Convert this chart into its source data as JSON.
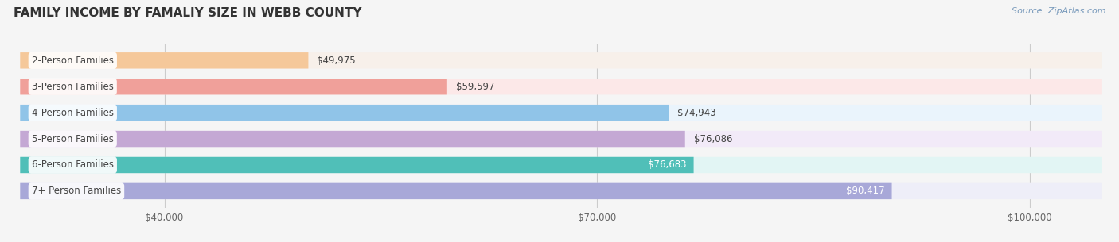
{
  "title": "FAMILY INCOME BY FAMALIY SIZE IN WEBB COUNTY",
  "source": "Source: ZipAtlas.com",
  "categories": [
    "2-Person Families",
    "3-Person Families",
    "4-Person Families",
    "5-Person Families",
    "6-Person Families",
    "7+ Person Families"
  ],
  "values": [
    49975,
    59597,
    74943,
    76086,
    76683,
    90417
  ],
  "bar_colors": [
    "#f5c89a",
    "#f0a09a",
    "#90c4e8",
    "#c4a8d4",
    "#50bfb8",
    "#a8a8d8"
  ],
  "bar_bg_colors": [
    "#f7f0ea",
    "#fce8e8",
    "#eaf4fc",
    "#f2eaf8",
    "#e2f5f4",
    "#eeeef8"
  ],
  "value_labels": [
    "$49,975",
    "$59,597",
    "$74,943",
    "$76,086",
    "$76,683",
    "$90,417"
  ],
  "value_label_colors": [
    "#444444",
    "#444444",
    "#444444",
    "#444444",
    "#ffffff",
    "#ffffff"
  ],
  "xlim_min": 30000,
  "xlim_max": 105000,
  "xticks": [
    40000,
    70000,
    100000
  ],
  "xtick_labels": [
    "$40,000",
    "$70,000",
    "$100,000"
  ],
  "background_color": "#f5f5f5",
  "bar_height": 0.62,
  "title_fontsize": 11,
  "label_fontsize": 8.5,
  "value_fontsize": 8.5,
  "source_fontsize": 8,
  "grid_color": "#cccccc",
  "tick_label_color": "#666666",
  "title_color": "#333333",
  "source_color": "#7799bb",
  "cat_label_color": "#444444"
}
